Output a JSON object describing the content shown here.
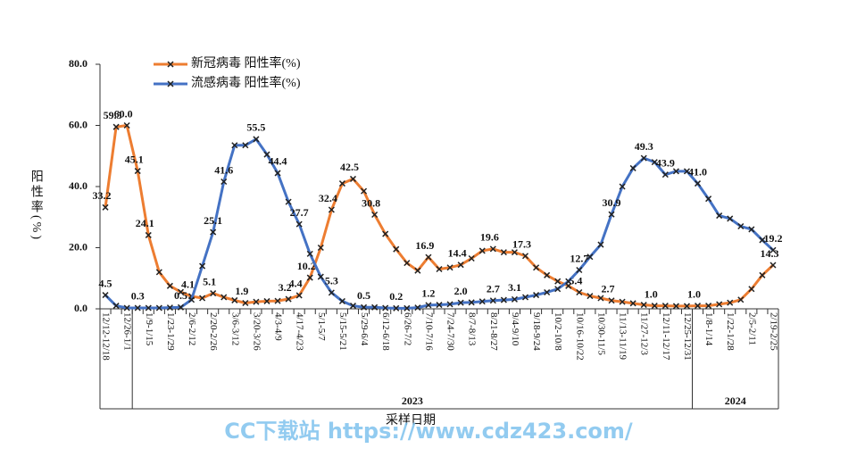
{
  "chart_data": {
    "type": "line",
    "legend_items": [
      "新冠病毒  阳性率(%)",
      "流感病毒  阳性率(%)"
    ],
    "ylabel": "阳性率(%)",
    "xlabel": "采样日期",
    "watermark": "CC下载站  https://www.cdz423.com/",
    "ylim": [
      0,
      80
    ],
    "yticks": [
      {
        "value": 0,
        "label": "0.0"
      },
      {
        "value": 20,
        "label": "20.0"
      },
      {
        "value": 40,
        "label": "40.0"
      },
      {
        "value": 60,
        "label": "60.0"
      },
      {
        "value": 80,
        "label": "80.0"
      }
    ],
    "x_groups": [
      {
        "label": "2023",
        "start": 3,
        "end": 54
      },
      {
        "label": "2024",
        "start": 55,
        "end": 62
      }
    ],
    "categories": [
      "12/12-12/18",
      null,
      "12/26-1/1",
      null,
      "1/9-1/15",
      null,
      "1/23-1/29",
      null,
      "2/6-2/12",
      null,
      "2/20-2/26",
      null,
      "3/6-3/12",
      null,
      "3/20-3/26",
      null,
      "4/3-4/9",
      null,
      "4/17-4/23",
      null,
      "5/1-5/7",
      null,
      "5/15-5/21",
      null,
      "5/29-6/4",
      null,
      "6/12-6/18",
      null,
      "6/26-7/2",
      null,
      "7/10-7/16",
      null,
      "7/24-7/30",
      null,
      "8/7-8/13",
      null,
      "8/21-8/27",
      null,
      "9/4-9/10",
      null,
      "9/18-9/24",
      null,
      "10/2-10/8",
      null,
      "10/16-10/22",
      null,
      "10/30-11/5",
      null,
      "11/13-11/19",
      null,
      "11/27-12/3",
      null,
      "12/11-12/17",
      null,
      "12/25-12/31",
      null,
      "1/8-1/14",
      null,
      "1/22-1/28",
      null,
      "2/5-2/11",
      null,
      "2/19-2/25"
    ],
    "series": [
      {
        "name": "新冠病毒  阳性率(%)",
        "color": "#ed7d31",
        "values": [
          33.2,
          59.5,
          60.0,
          45.1,
          24.1,
          12,
          7.5,
          5.5,
          4.1,
          3.5,
          5.1,
          3.8,
          2.8,
          1.9,
          2.3,
          2.5,
          2.6,
          3.2,
          4.4,
          10.2,
          20,
          32.4,
          41,
          42.5,
          38.5,
          30.8,
          24.5,
          19.5,
          15,
          12.5,
          16.9,
          13,
          13.5,
          14.4,
          16.5,
          19,
          19.6,
          18.5,
          18.5,
          17.3,
          13.5,
          11,
          9,
          7.5,
          5.4,
          4.2,
          3.5,
          2.7,
          2.3,
          1.8,
          1.3,
          1.0,
          1.0,
          0.9,
          0.9,
          1.0,
          1.0,
          1.5,
          2.0,
          3.0,
          6.5,
          11,
          14.3
        ],
        "value_labels": [
          "33.2",
          "59.5",
          "60.0",
          "45.1",
          "24.1",
          null,
          null,
          null,
          "4.1",
          null,
          "5.1",
          null,
          null,
          "1.9",
          null,
          null,
          null,
          "3.2",
          "4.4",
          "10.2",
          null,
          "32.4",
          null,
          "42.5",
          null,
          "30.8",
          null,
          null,
          null,
          null,
          "16.9",
          null,
          null,
          "14.4",
          null,
          null,
          "19.6",
          null,
          null,
          "17.3",
          null,
          null,
          null,
          null,
          "5.4",
          null,
          null,
          "2.7",
          null,
          null,
          null,
          "1.0",
          null,
          null,
          null,
          "1.0",
          null,
          null,
          null,
          null,
          null,
          null,
          "14.3"
        ]
      },
      {
        "name": "流感病毒  阳性率(%)",
        "color": "#4472c4",
        "values": [
          4.5,
          1.0,
          0.3,
          0.3,
          0.3,
          0.3,
          0.4,
          0.5,
          3.0,
          14,
          25.1,
          41.6,
          53.5,
          53.5,
          55.5,
          50.5,
          44.4,
          35,
          27.7,
          18,
          10.5,
          5.3,
          2.5,
          1.0,
          0.5,
          0.5,
          0.3,
          0.2,
          0.2,
          0.4,
          1.2,
          1.3,
          1.5,
          2.0,
          2.1,
          2.4,
          2.7,
          2.9,
          3.1,
          3.8,
          4.5,
          5.4,
          6.5,
          9,
          12.7,
          17,
          21,
          30.9,
          40,
          46,
          49.3,
          48,
          43.9,
          45,
          45,
          41,
          36,
          30.5,
          29.5,
          27,
          26,
          22.5,
          19.2
        ],
        "value_labels": [
          "4.5",
          null,
          null,
          "0.3",
          null,
          null,
          null,
          "0.5",
          null,
          null,
          "25.1",
          "41.6",
          null,
          null,
          "55.5",
          null,
          "44.4",
          null,
          "27.7",
          null,
          null,
          "5.3",
          null,
          null,
          "0.5",
          null,
          null,
          "0.2",
          null,
          null,
          "1.2",
          null,
          null,
          "2.0",
          null,
          null,
          "2.7",
          null,
          "3.1",
          null,
          null,
          null,
          null,
          null,
          "12.7",
          null,
          null,
          "30.9",
          null,
          null,
          "49.3",
          null,
          "43.9",
          null,
          null,
          "41.0",
          null,
          null,
          null,
          null,
          null,
          null,
          "19.2"
        ]
      }
    ]
  }
}
